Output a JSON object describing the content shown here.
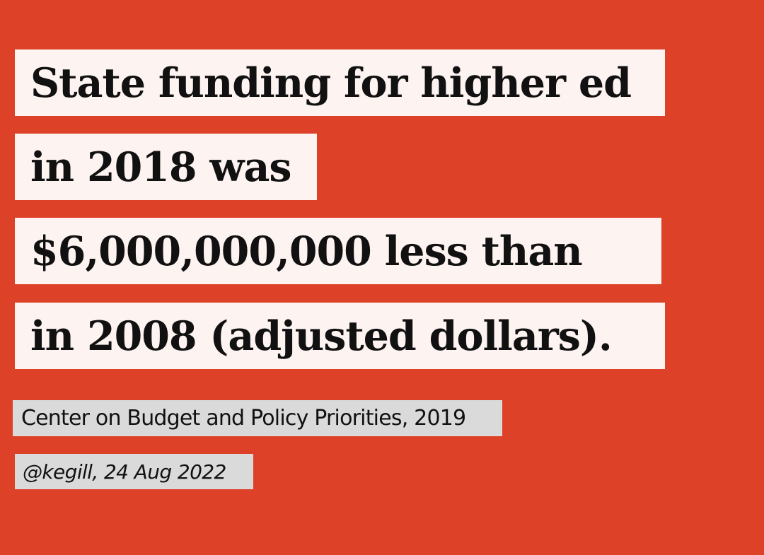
{
  "quote": {
    "lines": [
      "State funding for higher ed",
      "in 2018 was",
      "$6,000,000,000 less than",
      "in 2008 (adjusted dollars)."
    ]
  },
  "source": "Center on Budget and Policy Priorities, 2019",
  "byline": "@kegill, 24 Aug 2022",
  "colors": {
    "background": "#dd4128",
    "quote_box": "#fdf3f1",
    "credit_box": "#dadada",
    "text": "#111111"
  }
}
